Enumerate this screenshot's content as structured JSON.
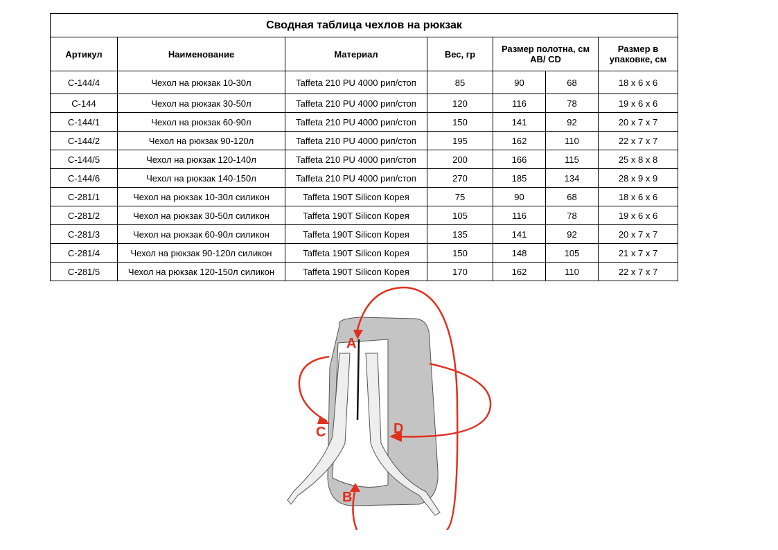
{
  "table": {
    "title": "Сводная таблица чехлов на рюкзак",
    "headers": [
      "Артикул",
      "Наименование",
      "Материал",
      "Вес, гр",
      "Размер полотна, см AB/ CD",
      "Размер в упаковке, см"
    ],
    "rows": [
      [
        "C-144/4",
        "Чехол на рюкзак 10-30л",
        "Taffeta 210 PU 4000 рип/стоп",
        "85",
        "90",
        "68",
        "18 x 6 x 6"
      ],
      [
        "C-144",
        "Чехол на рюкзак 30-50л",
        "Taffeta 210 PU 4000 рип/стоп",
        "120",
        "116",
        "78",
        "19 x 6 x 6"
      ],
      [
        "C-144/1",
        "Чехол на рюкзак 60-90л",
        "Taffeta 210 PU 4000 рип/стоп",
        "150",
        "141",
        "92",
        "20 x 7 x 7"
      ],
      [
        "C-144/2",
        "Чехол на рюкзак 90-120л",
        "Taffeta 210 PU 4000 рип/стоп",
        "195",
        "162",
        "110",
        "22 x 7 x 7"
      ],
      [
        "C-144/5",
        "Чехол на рюкзак 120-140л",
        "Taffeta 210 PU 4000 рип/стоп",
        "200",
        "166",
        "115",
        "25 x 8 x 8"
      ],
      [
        "C-144/6",
        "Чехол на рюкзак 140-150л",
        "Taffeta 210 PU 4000 рип/стоп",
        "270",
        "185",
        "134",
        "28 x 9 x 9"
      ],
      [
        "C-281/1",
        "Чехол на рюкзак 10-30л силикон",
        "Taffeta 190T Silicon Корея",
        "75",
        "90",
        "68",
        "18 x 6 x 6"
      ],
      [
        "C-281/2",
        "Чехол на рюкзак 30-50л силикон",
        "Taffeta 190T Silicon Корея",
        "105",
        "116",
        "78",
        "19 x 6 x 6"
      ],
      [
        "C-281/3",
        "Чехол на рюкзак 60-90л силикон",
        "Taffeta 190T Silicon Корея",
        "135",
        "141",
        "92",
        "20 x 7 x 7"
      ],
      [
        "C-281/4",
        "Чехол на рюкзак 90-120л силикон",
        "Taffeta 190T Silicon Корея",
        "150",
        "148",
        "105",
        "21 x 7 x 7"
      ],
      [
        "C-281/5",
        "Чехол на рюкзак 120-150л силикон",
        "Taffeta 190T Silicon Корея",
        "170",
        "162",
        "110",
        "22 x 7 x 7"
      ]
    ]
  },
  "diagram": {
    "labels": [
      "A",
      "B",
      "C",
      "D"
    ],
    "arrow_color": "#e0301e",
    "cover_color": "#c4c4c4"
  }
}
